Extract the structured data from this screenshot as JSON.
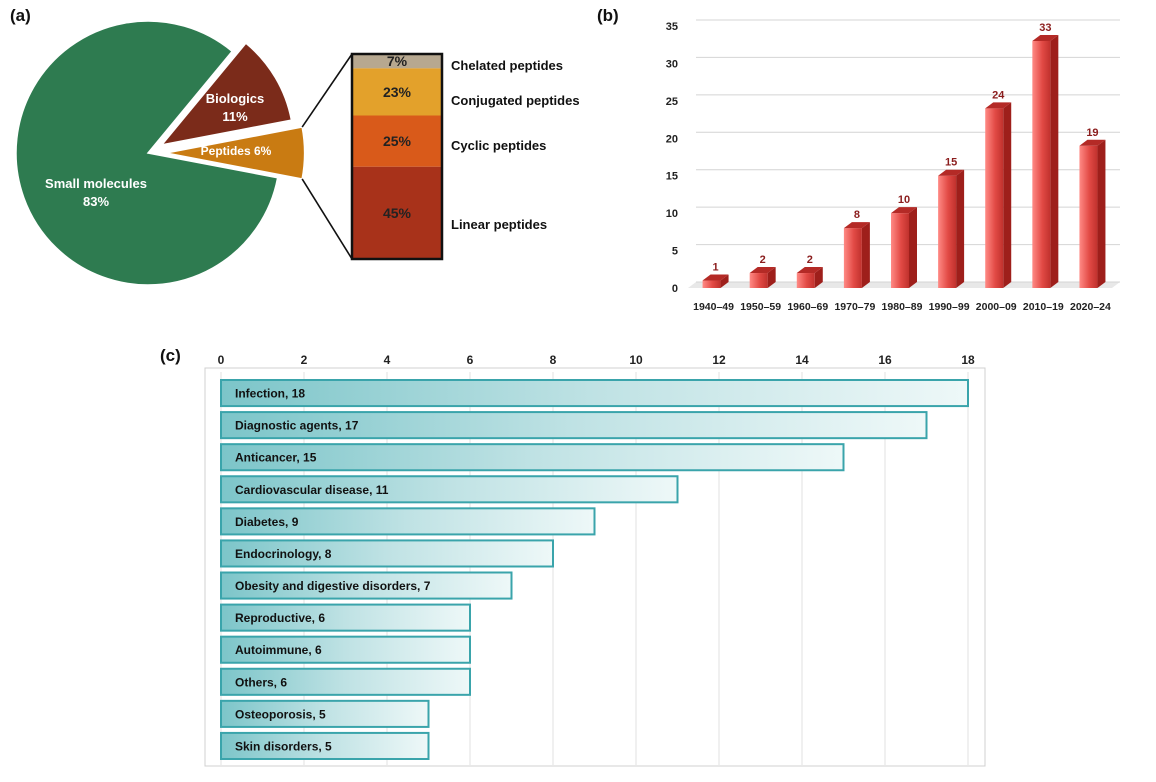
{
  "panels": {
    "a": "(a)",
    "b": "(b)",
    "c": "(c)"
  },
  "colors": {
    "small_molecules": "#2e7b50",
    "biologics": "#7b2b1a",
    "peptides": "#c97b12",
    "chelated": "#b7a890",
    "conjugated": "#e3a12b",
    "cyclic": "#d95a1a",
    "linear": "#a8321a",
    "bar_red": "#d9433f",
    "bar_label": "#8b1d1d",
    "teal": "#3aa4ab"
  },
  "chart_data": [
    {
      "type": "pie",
      "panel": "a",
      "slices": [
        {
          "name": "Small molecules",
          "value": 83,
          "label": "83%"
        },
        {
          "name": "Biologics",
          "value": 11,
          "label": "11%"
        },
        {
          "name": "Peptides",
          "value": 6,
          "label": "Peptides 6%"
        }
      ],
      "breakdown": {
        "of": "Peptides",
        "segments": [
          {
            "name": "Chelated peptides",
            "value": 7,
            "label": "7%"
          },
          {
            "name": "Conjugated peptides",
            "value": 23,
            "label": "23%"
          },
          {
            "name": "Cyclic peptides",
            "value": 25,
            "label": "25%"
          },
          {
            "name": "Linear peptides",
            "value": 45,
            "label": "45%"
          }
        ]
      }
    },
    {
      "type": "bar",
      "panel": "b",
      "categories": [
        "1940–49",
        "1950–59",
        "1960–69",
        "1970–79",
        "1980–89",
        "1990–99",
        "2000–09",
        "2010–19",
        "2020–24"
      ],
      "values": [
        1,
        2,
        2,
        8,
        10,
        15,
        24,
        33,
        19
      ],
      "ylim": [
        0,
        35
      ],
      "yticks": [
        0,
        5,
        10,
        15,
        20,
        25,
        30,
        35
      ],
      "grid": true
    },
    {
      "type": "bar",
      "panel": "c",
      "orientation": "horizontal",
      "categories": [
        "Infection",
        "Diagnostic agents",
        "Anticancer",
        "Cardiovascular disease",
        "Diabetes",
        "Endocrinology",
        "Obesity and digestive disorders",
        "Reproductive",
        "Autoimmune",
        "Others",
        "Osteoporosis",
        "Skin disorders"
      ],
      "values": [
        18,
        17,
        15,
        11,
        9,
        8,
        7,
        6,
        6,
        6,
        5,
        5
      ],
      "bar_labels": [
        "Infection, 18",
        "Diagnostic agents, 17",
        "Anticancer, 15",
        "Cardiovascular disease, 11",
        "Diabetes, 9",
        "Endocrinology, 8",
        "Obesity and digestive disorders, 7",
        "Reproductive, 6",
        "Autoimmune, 6",
        "Others, 6",
        "Osteoporosis, 5",
        "Skin disorders, 5"
      ],
      "xlim": [
        0,
        18
      ],
      "xticks": [
        0,
        2,
        4,
        6,
        8,
        10,
        12,
        14,
        16,
        18
      ],
      "xaxis_position": "top",
      "grid": true
    }
  ]
}
